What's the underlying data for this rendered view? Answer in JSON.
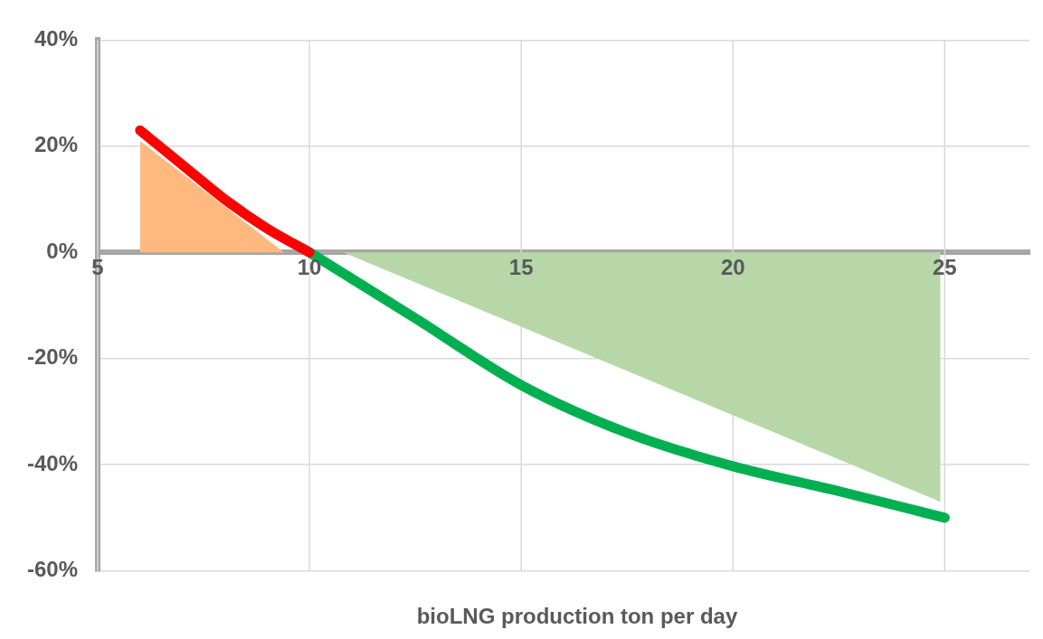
{
  "chart_data": {
    "type": "line",
    "xlabel": "bioLNG production ton per day",
    "xlim": [
      5,
      27
    ],
    "xticks": [
      5,
      10,
      15,
      20,
      25
    ],
    "ylim": [
      -60,
      40
    ],
    "yticks": [
      {
        "value": -60,
        "label": "-60%"
      },
      {
        "value": -40,
        "label": "-40%"
      },
      {
        "value": -20,
        "label": "-20%"
      },
      {
        "value": 0,
        "label": "0%"
      },
      {
        "value": 20,
        "label": "20%"
      },
      {
        "value": 40,
        "label": "40%"
      }
    ],
    "grid": true,
    "legend": false,
    "marker": "none",
    "line_style": "solid",
    "series": [
      {
        "type": "area",
        "color": "#ffb97f",
        "x": [
          6,
          9.4
        ],
        "values": [
          21,
          0
        ]
      },
      {
        "type": "area",
        "color": "#b7d7a8",
        "x": [
          10.8,
          24.9
        ],
        "values": [
          0,
          -47
        ]
      },
      {
        "type": "line",
        "color": "#ff0000",
        "x": [
          6,
          7,
          8,
          9,
          10
        ],
        "values": [
          23,
          16.5,
          10,
          4.5,
          0
        ]
      },
      {
        "type": "line",
        "color": "#00b050",
        "x": [
          10,
          12.5,
          15,
          17.5,
          20,
          22.5,
          25
        ],
        "values": [
          0,
          -12.4,
          -25,
          -34,
          -40.3,
          -45,
          -50
        ]
      }
    ]
  }
}
